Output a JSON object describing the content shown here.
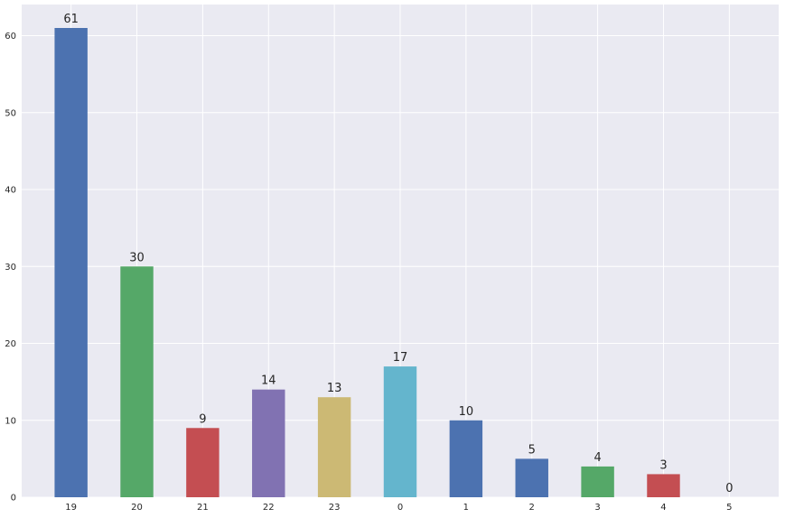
{
  "chart_data": {
    "type": "bar",
    "title": "",
    "xlabel": "",
    "ylabel": "",
    "categories": [
      "19",
      "20",
      "21",
      "22",
      "23",
      "0",
      "1",
      "2",
      "3",
      "4",
      "5"
    ],
    "values": [
      61,
      30,
      9,
      14,
      13,
      17,
      10,
      5,
      4,
      3,
      0
    ],
    "data_labels": [
      "61",
      "30",
      "9",
      "14",
      "13",
      "17",
      "10",
      "5",
      "4",
      "3",
      "0"
    ],
    "colors": [
      "#4c72b0",
      "#55a868",
      "#c44e52",
      "#8172b2",
      "#ccb974",
      "#64b5cd",
      "#4c72b0",
      "#4c72b0",
      "#55a868",
      "#c44e52",
      "#8172b2"
    ],
    "ylim": [
      0,
      64.05
    ],
    "yticks": [
      0,
      10,
      20,
      30,
      40,
      50,
      60
    ],
    "ytick_labels": [
      "0",
      "10",
      "20",
      "30",
      "40",
      "50",
      "60"
    ],
    "grid": true,
    "legend": "none",
    "background_color": "#eaeaf2",
    "grid_color": "#ffffff"
  }
}
